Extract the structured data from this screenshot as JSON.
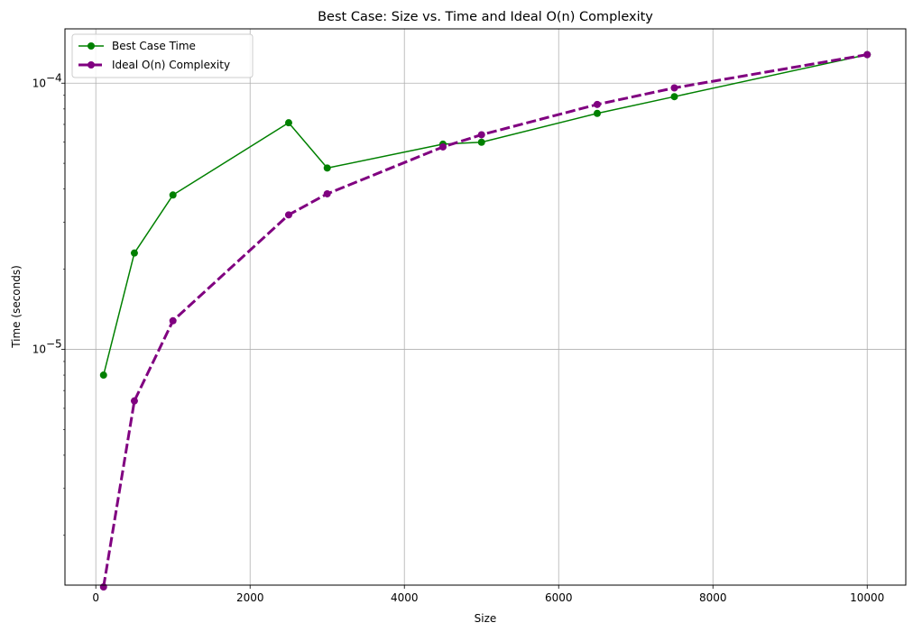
{
  "chart_data": {
    "type": "line",
    "title": "Best Case: Size vs. Time and Ideal O(n) Complexity",
    "xlabel": "Size",
    "ylabel": "Time (seconds)",
    "xlim": [
      -400,
      10500
    ],
    "ylim": [
      1.3e-06,
      0.00016
    ],
    "yscale": "log",
    "grid": true,
    "legend_position": "top-left",
    "x_ticks": [
      {
        "value": 0,
        "label": "0"
      },
      {
        "value": 2000,
        "label": "2000"
      },
      {
        "value": 4000,
        "label": "4000"
      },
      {
        "value": 6000,
        "label": "6000"
      },
      {
        "value": 8000,
        "label": "8000"
      },
      {
        "value": 10000,
        "label": "10000"
      }
    ],
    "y_ticks": [
      {
        "value": 1e-05,
        "base": "10",
        "exp": "−5"
      },
      {
        "value": 0.0001,
        "base": "10",
        "exp": "−4"
      }
    ],
    "x": [
      100,
      500,
      1000,
      2500,
      3000,
      4500,
      5000,
      6500,
      7500,
      10000
    ],
    "series": [
      {
        "name": "Best Case Time",
        "color": "#008000",
        "style": "solid",
        "values": [
          8e-06,
          2.3e-05,
          3.8e-05,
          7.1e-05,
          4.8e-05,
          5.9e-05,
          6e-05,
          7.7e-05,
          8.9e-05,
          0.000128
        ]
      },
      {
        "name": "Ideal O(n) Complexity",
        "color": "#800080",
        "style": "dashed",
        "values": [
          1.28e-06,
          6.4e-06,
          1.28e-05,
          3.2e-05,
          3.84e-05,
          5.76e-05,
          6.4e-05,
          8.32e-05,
          9.6e-05,
          0.000128
        ]
      }
    ]
  }
}
